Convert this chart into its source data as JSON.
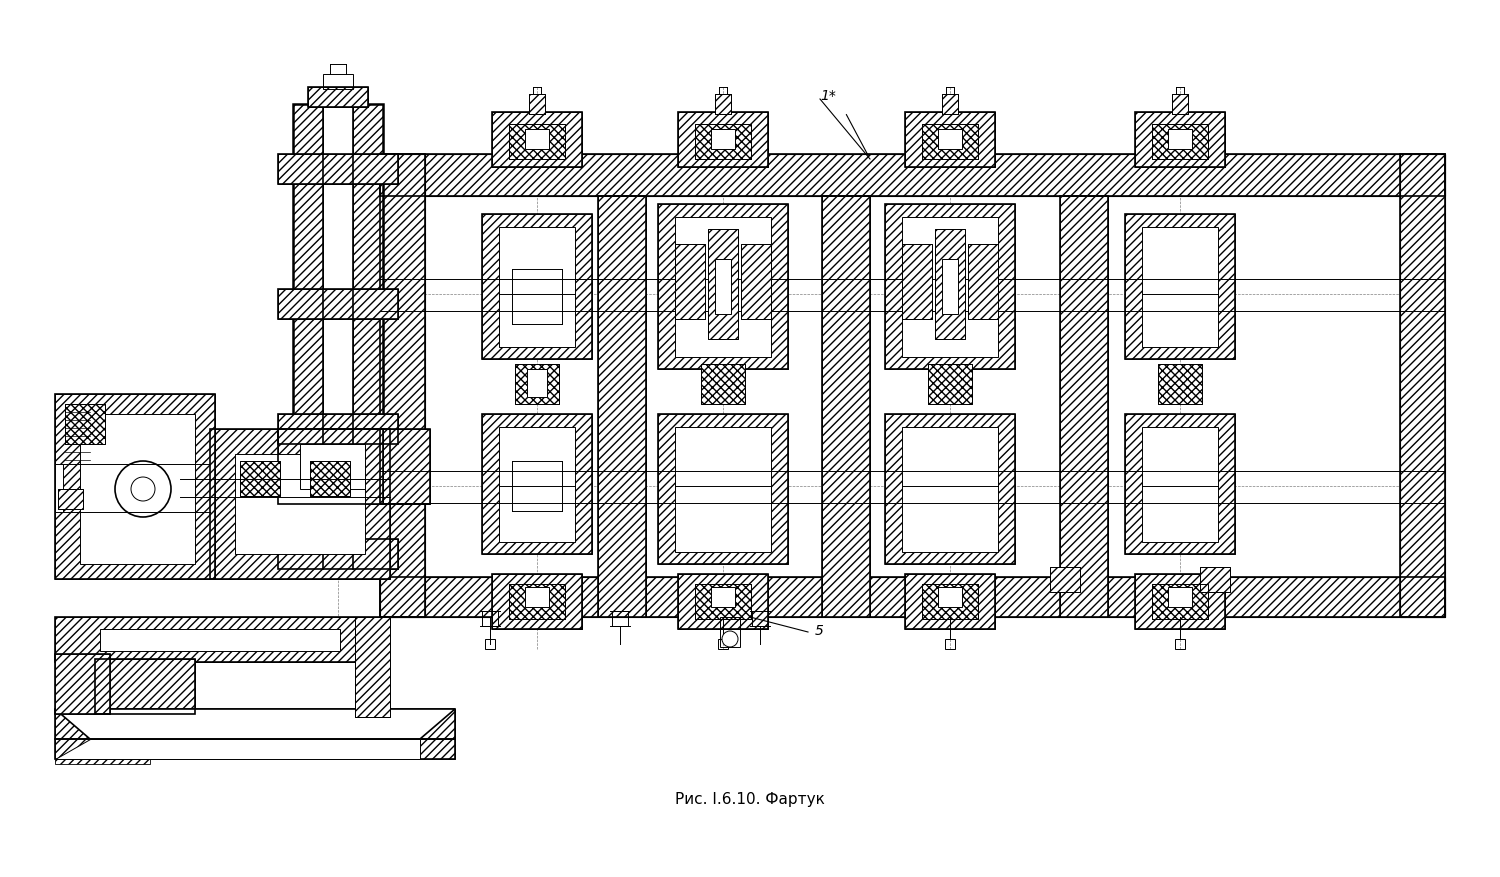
{
  "title": "Рис. I.6.10. Фартук",
  "label_1": "1*",
  "label_5": "5",
  "bg_color": "#ffffff",
  "line_color": "#000000",
  "figsize": [
    15.0,
    8.78
  ],
  "dpi": 100,
  "xlim": [
    0,
    1500
  ],
  "ylim": [
    0,
    878
  ]
}
